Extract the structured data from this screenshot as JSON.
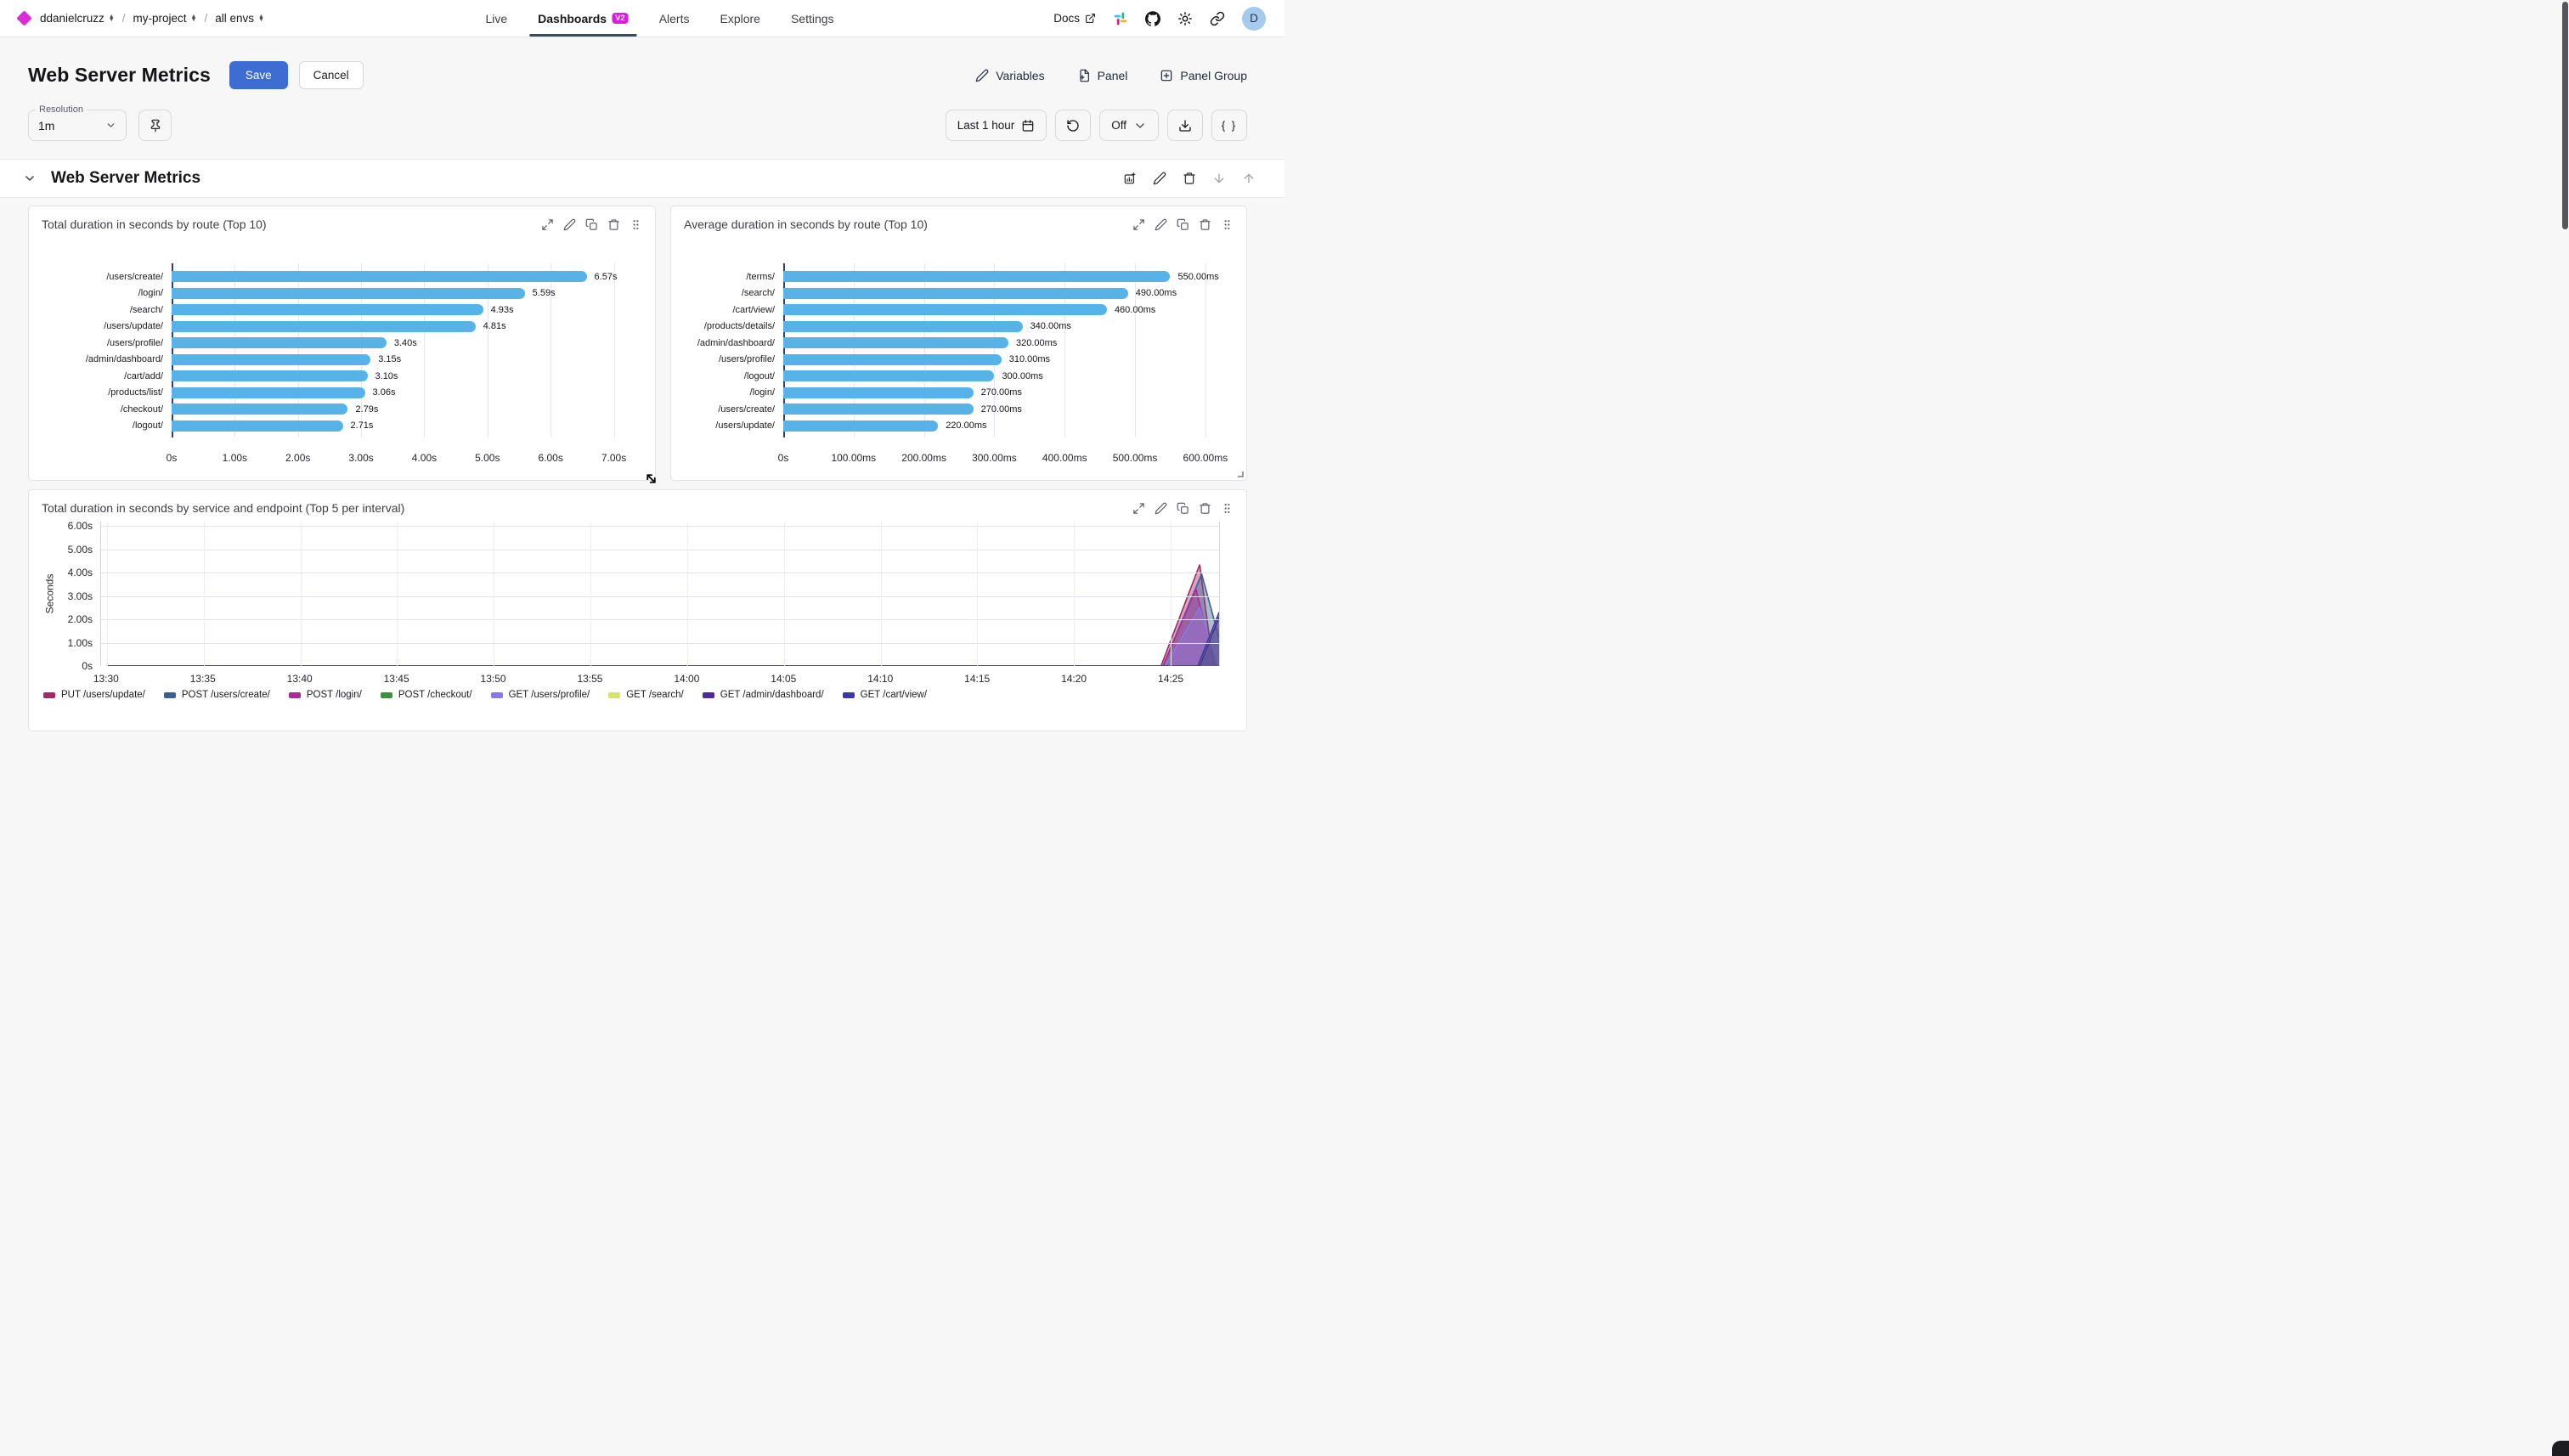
{
  "topbar": {
    "breadcrumb": [
      {
        "label": "ddanielcruzz"
      },
      {
        "label": "my-project"
      },
      {
        "label": "all envs"
      }
    ],
    "nav": [
      {
        "label": "Live"
      },
      {
        "label": "Dashboards",
        "badge": "V2"
      },
      {
        "label": "Alerts"
      },
      {
        "label": "Explore"
      },
      {
        "label": "Settings"
      }
    ],
    "docs_label": "Docs",
    "icons": [
      "external-link",
      "slack",
      "github",
      "theme-sun",
      "share-link"
    ],
    "avatar_initial": "D"
  },
  "title_bar": {
    "title": "Web Server Metrics",
    "save_label": "Save",
    "cancel_label": "Cancel",
    "variables_label": "Variables",
    "panel_label": "Panel",
    "panel_group_label": "Panel Group"
  },
  "controls": {
    "resolution_label": "Resolution",
    "resolution_value": "1m",
    "time_range": "Last 1 hour",
    "refresh_mode": "Off",
    "icons": [
      "pin",
      "calendar",
      "refresh",
      "chevron-down",
      "download",
      "braces"
    ]
  },
  "section": {
    "title": "Web Server Metrics",
    "icons": [
      "add-panel-chart",
      "edit",
      "delete",
      "move-down",
      "move-up"
    ]
  },
  "panel_header_icons": [
    "expand",
    "edit",
    "duplicate",
    "delete",
    "drag-handle"
  ],
  "colors": {
    "brand_magenta": "#d92dd9",
    "badge_magenta": "#e019e0",
    "accent_blue": "#3d6dd3",
    "active_tab_underline": "#3e4a5a",
    "bar_blue": "#57b2e8",
    "avatar_bg": "#a6c9ee"
  },
  "chart_data": [
    {
      "type": "bar",
      "orientation": "horizontal",
      "title": "Total duration in seconds by route (Top 10)",
      "unit": "s",
      "categories": [
        "/users/create/",
        "/login/",
        "/search/",
        "/users/update/",
        "/users/profile/",
        "/admin/dashboard/",
        "/cart/add/",
        "/products/list/",
        "/checkout/",
        "/logout/"
      ],
      "values": [
        6.57,
        5.59,
        4.93,
        4.81,
        3.4,
        3.15,
        3.1,
        3.06,
        2.79,
        2.71
      ],
      "value_labels": [
        "6.57s",
        "5.59s",
        "4.93s",
        "4.81s",
        "3.40s",
        "3.15s",
        "3.10s",
        "3.06s",
        "2.79s",
        "2.71s"
      ],
      "xlim": [
        0,
        7.45
      ],
      "ticks": [
        {
          "v": 0,
          "label": "0s"
        },
        {
          "v": 1,
          "label": "1.00s"
        },
        {
          "v": 2,
          "label": "2.00s"
        },
        {
          "v": 3,
          "label": "3.00s"
        },
        {
          "v": 4,
          "label": "4.00s"
        },
        {
          "v": 5,
          "label": "5.00s"
        },
        {
          "v": 6,
          "label": "6.00s"
        },
        {
          "v": 7,
          "label": "7.00s"
        }
      ],
      "bar_color": "#57b2e8",
      "grid": true
    },
    {
      "type": "bar",
      "orientation": "horizontal",
      "title": "Average duration in seconds by route (Top 10)",
      "unit": "ms",
      "categories": [
        "/terms/",
        "/search/",
        "/cart/view/",
        "/products/details/",
        "/admin/dashboard/",
        "/users/profile/",
        "/logout/",
        "/login/",
        "/users/create/",
        "/users/update/"
      ],
      "values": [
        550,
        490,
        460,
        340,
        320,
        310,
        300,
        270,
        270,
        220
      ],
      "value_labels": [
        "550.00ms",
        "490.00ms",
        "460.00ms",
        "340.00ms",
        "320.00ms",
        "310.00ms",
        "300.00ms",
        "270.00ms",
        "270.00ms",
        "220.00ms"
      ],
      "xlim": [
        0,
        640
      ],
      "ticks": [
        {
          "v": 0,
          "label": "0s"
        },
        {
          "v": 100,
          "label": "100.00ms"
        },
        {
          "v": 200,
          "label": "200.00ms"
        },
        {
          "v": 300,
          "label": "300.00ms"
        },
        {
          "v": 400,
          "label": "400.00ms"
        },
        {
          "v": 500,
          "label": "500.00ms"
        },
        {
          "v": 600,
          "label": "600.00ms"
        }
      ],
      "bar_color": "#57b2e8",
      "grid": true
    },
    {
      "type": "area",
      "title": "Total duration in seconds by service and endpoint (Top 5 per interval)",
      "ylabel": "Seconds",
      "ylim": [
        0,
        6.2
      ],
      "y_ticks": [
        {
          "v": 0,
          "label": "0s"
        },
        {
          "v": 1,
          "label": "1.00s"
        },
        {
          "v": 2,
          "label": "2.00s"
        },
        {
          "v": 3,
          "label": "3.00s"
        },
        {
          "v": 4,
          "label": "4.00s"
        },
        {
          "v": 5,
          "label": "5.00s"
        },
        {
          "v": 6,
          "label": "6.00s"
        }
      ],
      "x_domain_minutes": [
        -0.3,
        57.5
      ],
      "x_ticks": [
        {
          "m": 0,
          "label": "13:30"
        },
        {
          "m": 5,
          "label": "13:35"
        },
        {
          "m": 10,
          "label": "13:40"
        },
        {
          "m": 15,
          "label": "13:45"
        },
        {
          "m": 20,
          "label": "13:50"
        },
        {
          "m": 25,
          "label": "13:55"
        },
        {
          "m": 30,
          "label": "14:00"
        },
        {
          "m": 35,
          "label": "14:05"
        },
        {
          "m": 40,
          "label": "14:10"
        },
        {
          "m": 45,
          "label": "14:15"
        },
        {
          "m": 50,
          "label": "14:20"
        },
        {
          "m": 55,
          "label": "14:25"
        }
      ],
      "legend_position": "bottom",
      "series": [
        {
          "name": "PUT /users/update/",
          "color": "#9e2b63",
          "points": [
            [
              0,
              0
            ],
            [
              54.5,
              0
            ],
            [
              56.5,
              4.35
            ],
            [
              57.2,
              0
            ],
            [
              57.5,
              0
            ]
          ]
        },
        {
          "name": "POST /users/create/",
          "color": "#3d5f94",
          "points": [
            [
              0,
              0
            ],
            [
              54.6,
              0
            ],
            [
              56.6,
              3.95
            ],
            [
              57.5,
              1.2
            ]
          ]
        },
        {
          "name": "POST /login/",
          "color": "#a62c97",
          "points": [
            [
              0,
              0
            ],
            [
              54.6,
              0
            ],
            [
              56.3,
              3.3
            ],
            [
              57.3,
              0
            ],
            [
              57.5,
              0
            ]
          ]
        },
        {
          "name": "POST /checkout/",
          "color": "#3f9142",
          "points": [
            [
              0,
              0
            ],
            [
              57.5,
              0
            ]
          ]
        },
        {
          "name": "GET /users/profile/",
          "color": "#8a79e0",
          "points": [
            [
              0,
              0
            ],
            [
              54.7,
              0
            ],
            [
              56.5,
              2.5
            ],
            [
              57.4,
              0
            ]
          ]
        },
        {
          "name": "GET /search/",
          "color": "#d8e36c",
          "points": [
            [
              0,
              0
            ],
            [
              56.4,
              0
            ],
            [
              57.5,
              2.2
            ]
          ]
        },
        {
          "name": "GET /admin/dashboard/",
          "color": "#4b2a9b",
          "points": [
            [
              0,
              0
            ],
            [
              56.5,
              0
            ],
            [
              57.5,
              2.1
            ]
          ]
        },
        {
          "name": "GET /cart/view/",
          "color": "#3a3a9e",
          "points": [
            [
              0,
              0
            ],
            [
              56.4,
              0
            ],
            [
              57.5,
              2.3
            ]
          ]
        }
      ]
    }
  ]
}
